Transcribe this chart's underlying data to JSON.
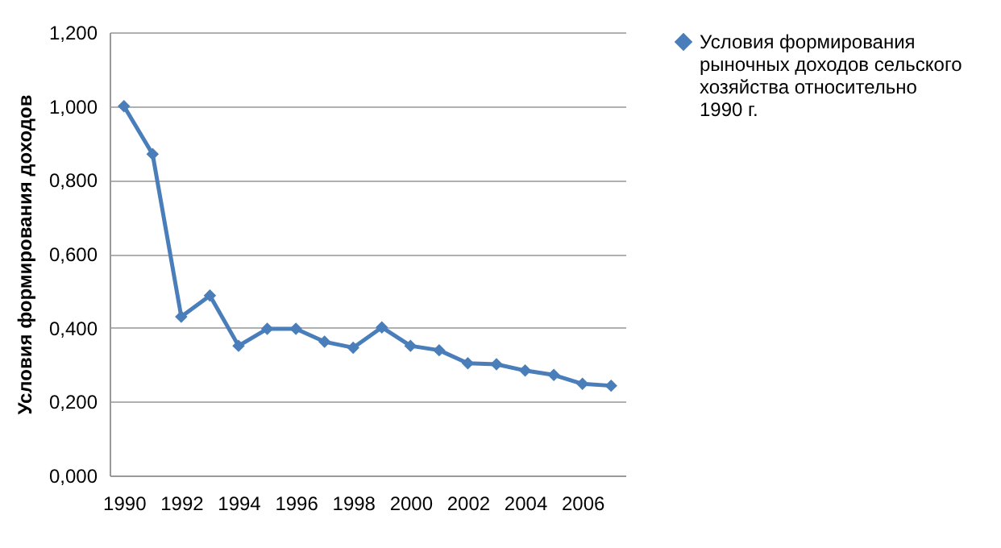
{
  "chart_data": {
    "type": "line",
    "ylabel": "Условия формирования доходов",
    "categories": [
      "1990",
      null,
      "1992",
      null,
      "1994",
      null,
      "1996",
      null,
      "1998",
      null,
      "2000",
      null,
      "2002",
      null,
      "2004",
      null,
      "2006",
      null
    ],
    "series": [
      {
        "name": "Условия формирования рыночных доходов сельского хозяйства относительно 1990 г.",
        "color": "#4a7ebb",
        "values": [
          1.0,
          0.87,
          0.43,
          0.487,
          0.351,
          0.397,
          0.397,
          0.362,
          0.346,
          0.401,
          0.351,
          0.339,
          0.304,
          0.301,
          0.284,
          0.272,
          0.248,
          0.243
        ]
      }
    ],
    "ylim": [
      0,
      1.2
    ],
    "yticks": [
      {
        "value": 0,
        "label": "0,000"
      },
      {
        "value": 0.2,
        "label": "0,200"
      },
      {
        "value": 0.4,
        "label": "0,400"
      },
      {
        "value": 0.6,
        "label": "0,600"
      },
      {
        "value": 0.8,
        "label": "0,800"
      },
      {
        "value": 1.0,
        "label": "1,000"
      },
      {
        "value": 1.2,
        "label": "1,200"
      }
    ],
    "grid": "y",
    "legend": "right",
    "marker": "diamond",
    "line_style": "solid"
  }
}
